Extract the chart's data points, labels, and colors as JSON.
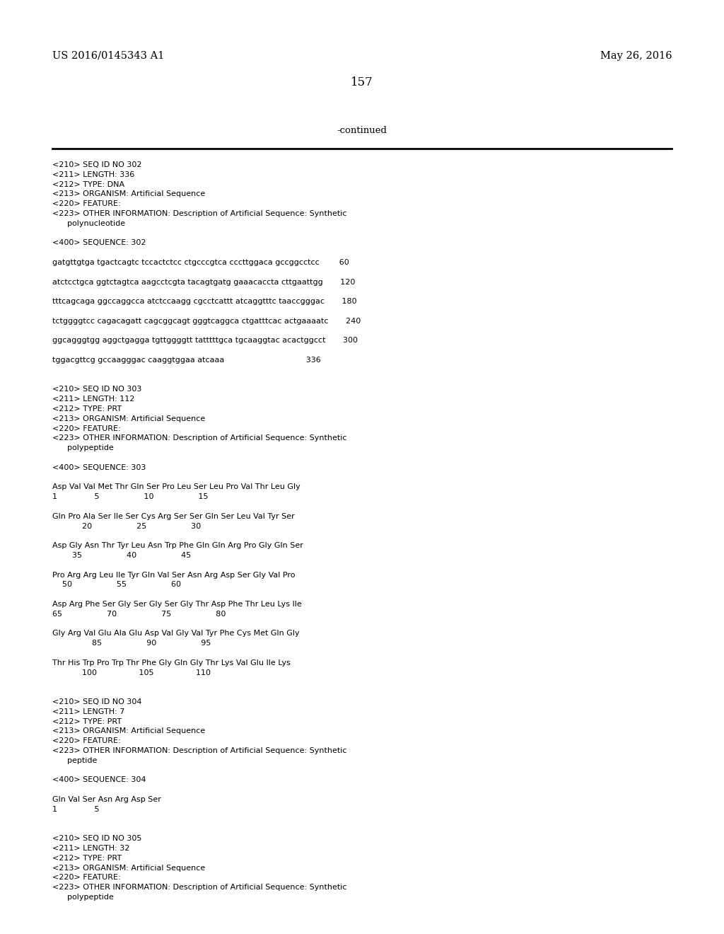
{
  "background_color": "#ffffff",
  "top_left_text": "US 2016/0145343 A1",
  "top_right_text": "May 26, 2016",
  "page_number": "157",
  "continued_text": "-continued",
  "monospace_font": "Courier New",
  "serif_font": "DejaVu Serif",
  "content": [
    "<210> SEQ ID NO 302",
    "<211> LENGTH: 336",
    "<212> TYPE: DNA",
    "<213> ORGANISM: Artificial Sequence",
    "<220> FEATURE:",
    "<223> OTHER INFORMATION: Description of Artificial Sequence: Synthetic",
    "      polynucleotide",
    "",
    "<400> SEQUENCE: 302",
    "",
    "gatgttgtga tgactcagtc tccactctcc ctgcccgtca cccttggaca gccggcctcc        60",
    "",
    "atctcctgca ggtctagtca aagcctcgta tacagtgatg gaaacaccta cttgaattgg       120",
    "",
    "tttcagcaga ggccaggcca atctccaagg cgcctcattt atcaggtttc taaccgggac       180",
    "",
    "tctggggtcc cagacagatt cagcggcagt gggtcaggca ctgatttcac actgaaaatc       240",
    "",
    "ggcagggtgg aggctgagga tgttggggtt tatttttgca tgcaaggtac acactggcct       300",
    "",
    "tggacgttcg gccaagggac caaggtggaa atcaaa                                 336",
    "",
    "",
    "<210> SEQ ID NO 303",
    "<211> LENGTH: 112",
    "<212> TYPE: PRT",
    "<213> ORGANISM: Artificial Sequence",
    "<220> FEATURE:",
    "<223> OTHER INFORMATION: Description of Artificial Sequence: Synthetic",
    "      polypeptide",
    "",
    "<400> SEQUENCE: 303",
    "",
    "Asp Val Val Met Thr Gln Ser Pro Leu Ser Leu Pro Val Thr Leu Gly",
    "1               5                  10                  15",
    "",
    "Gln Pro Ala Ser Ile Ser Cys Arg Ser Ser Gln Ser Leu Val Tyr Ser",
    "            20                  25                  30",
    "",
    "Asp Gly Asn Thr Tyr Leu Asn Trp Phe Gln Gln Arg Pro Gly Gln Ser",
    "        35                  40                  45",
    "",
    "Pro Arg Arg Leu Ile Tyr Gln Val Ser Asn Arg Asp Ser Gly Val Pro",
    "    50                  55                  60",
    "",
    "Asp Arg Phe Ser Gly Ser Gly Ser Gly Thr Asp Phe Thr Leu Lys Ile",
    "65                  70                  75                  80",
    "",
    "Gly Arg Val Glu Ala Glu Asp Val Gly Val Tyr Phe Cys Met Gln Gly",
    "                85                  90                  95",
    "",
    "Thr His Trp Pro Trp Thr Phe Gly Gln Gly Thr Lys Val Glu Ile Lys",
    "            100                 105                 110",
    "",
    "",
    "<210> SEQ ID NO 304",
    "<211> LENGTH: 7",
    "<212> TYPE: PRT",
    "<213> ORGANISM: Artificial Sequence",
    "<220> FEATURE:",
    "<223> OTHER INFORMATION: Description of Artificial Sequence: Synthetic",
    "      peptide",
    "",
    "<400> SEQUENCE: 304",
    "",
    "Gln Val Ser Asn Arg Asp Ser",
    "1               5",
    "",
    "",
    "<210> SEQ ID NO 305",
    "<211> LENGTH: 32",
    "<212> TYPE: PRT",
    "<213> ORGANISM: Artificial Sequence",
    "<220> FEATURE:",
    "<223> OTHER INFORMATION: Description of Artificial Sequence: Synthetic",
    "      polypeptide"
  ]
}
